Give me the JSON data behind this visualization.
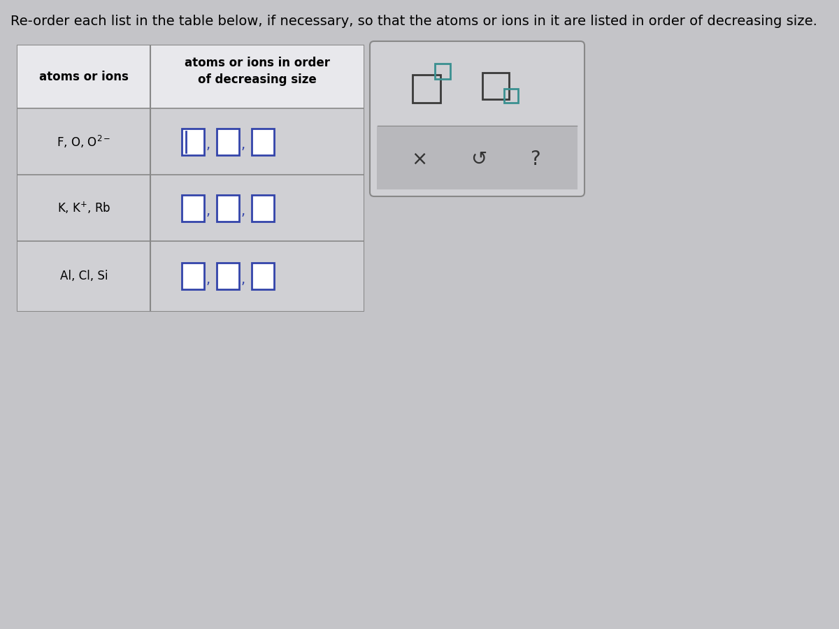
{
  "title": "Re-order each list in the table below, if necessary, so that the atoms or ions in it are listed in order of decreasing size.",
  "title_fontsize": 14,
  "bg_color": "#c4c4c8",
  "table_border_color": "#888888",
  "col1_header": "atoms or ions",
  "col2_header": "atoms or ions in order\nof decreasing size",
  "left_texts": [
    "F, O, O$^{2-}$",
    "K, K$^{+}$, Rb",
    "Al, Cl, Si"
  ],
  "dropdown_color": "#3344aa",
  "panel_bg": "#d0d0d4",
  "panel_border_color": "#888888",
  "panel_large_box_color": "#3a3a3a",
  "panel_small_box_color": "#3a9090",
  "bottom_section_bg": "#b8b8bc",
  "x_color": "#333333",
  "undo_color": "#333333",
  "question_color": "#333333",
  "cell_bg": "#d0d0d4",
  "header_bg": "#e8e8ec",
  "white_cell_bg": "#e8e8ec"
}
